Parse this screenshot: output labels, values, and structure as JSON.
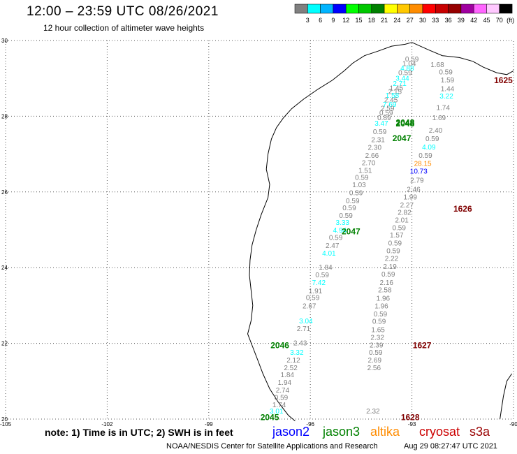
{
  "title": "12:00 – 23:59 UTC 08/26/2021",
  "subtitle": "12 hour collection of altimeter wave heights",
  "color_scale": {
    "unit": "(ft)",
    "ticks": [
      "3",
      "6",
      "9",
      "12",
      "15",
      "18",
      "21",
      "24",
      "27",
      "30",
      "33",
      "36",
      "39",
      "42",
      "45",
      "70"
    ],
    "colors": [
      "#808080",
      "#00ffff",
      "#00b4ff",
      "#0000ff",
      "#00ff00",
      "#00c800",
      "#008000",
      "#ffff00",
      "#ffc800",
      "#ff8c00",
      "#ff0000",
      "#c80000",
      "#960000",
      "#a000a0",
      "#ff64ff",
      "#ffc8ff",
      "#000000"
    ]
  },
  "note": "note: 1) Time is in UTC; 2) SWH is in feet",
  "legend": [
    {
      "name": "jason2",
      "color": "#0000ff"
    },
    {
      "name": "jason3",
      "color": "#008000"
    },
    {
      "name": "altika",
      "color": "#ff8c00"
    },
    {
      "name": "cryosat",
      "color": "#cc0000"
    },
    {
      "name": "s3a",
      "color": "#990000"
    }
  ],
  "credit": "NOAA/NESDIS Center for Satellite Applications and Research",
  "timestamp": "Aug 29 08:27:47 UTC 2021",
  "chart_data": {
    "type": "scatter",
    "xlim": [
      -105,
      -90
    ],
    "ylim": [
      20,
      30
    ],
    "x_ticks": [
      "-105",
      "-102",
      "-99",
      "-96",
      "-93",
      "-90"
    ],
    "y_ticks": [
      "30",
      "28",
      "26",
      "24",
      "22",
      "20"
    ],
    "grid": true,
    "pass_labels": [
      {
        "label": "1625",
        "lon": -90.3,
        "lat": 28.95,
        "color": "#800000"
      },
      {
        "label": "2048",
        "lon": -93.2,
        "lat": 27.8,
        "color": "#008000"
      },
      {
        "label": "2048",
        "lon": -93.2,
        "lat": 27.83,
        "color": "#008000"
      },
      {
        "label": "2047",
        "lon": -93.3,
        "lat": 27.42,
        "color": "#008000"
      },
      {
        "label": "1626",
        "lon": -91.5,
        "lat": 25.55,
        "color": "#800000"
      },
      {
        "label": "2047",
        "lon": -94.8,
        "lat": 24.95,
        "color": "#008000"
      },
      {
        "label": "2046",
        "lon": -96.9,
        "lat": 21.95,
        "color": "#008000"
      },
      {
        "label": "1627",
        "lon": -92.7,
        "lat": 21.95,
        "color": "#800000"
      },
      {
        "label": "2045",
        "lon": -97.2,
        "lat": 20.05,
        "color": "#008000"
      },
      {
        "label": "1628",
        "lon": -93.05,
        "lat": 20.05,
        "color": "#800000"
      }
    ],
    "points": [
      {
        "lon": -93.0,
        "lat": 29.5,
        "v": "0.59",
        "c": "#808080"
      },
      {
        "lon": -93.08,
        "lat": 29.38,
        "v": "1.04",
        "c": "#808080"
      },
      {
        "lon": -93.14,
        "lat": 29.26,
        "v": "4.88",
        "c": "#00ffff"
      },
      {
        "lon": -93.2,
        "lat": 29.14,
        "v": "0.59",
        "c": "#808080"
      },
      {
        "lon": -93.28,
        "lat": 28.99,
        "v": "3.44",
        "c": "#00ffff"
      },
      {
        "lon": -93.36,
        "lat": 28.86,
        "v": "2.71",
        "c": "#00ffff"
      },
      {
        "lon": -93.46,
        "lat": 28.74,
        "v": "1.45",
        "c": "#808080"
      },
      {
        "lon": -93.5,
        "lat": 28.64,
        "v": "2.15",
        "c": "#808080"
      },
      {
        "lon": -93.58,
        "lat": 28.54,
        "v": "1.58",
        "c": "#00ffff"
      },
      {
        "lon": -93.62,
        "lat": 28.42,
        "v": "2.45",
        "c": "#808080"
      },
      {
        "lon": -93.66,
        "lat": 28.3,
        "v": "7.69",
        "c": "#00ffff"
      },
      {
        "lon": -93.72,
        "lat": 28.2,
        "v": "2.59",
        "c": "#808080"
      },
      {
        "lon": -93.76,
        "lat": 28.08,
        "v": "0.59",
        "c": "#808080"
      },
      {
        "lon": -93.82,
        "lat": 27.95,
        "v": "0.89",
        "c": "#808080"
      },
      {
        "lon": -93.9,
        "lat": 27.8,
        "v": "3.47",
        "c": "#00ffff"
      },
      {
        "lon": -93.95,
        "lat": 27.58,
        "v": "0.59",
        "c": "#808080"
      },
      {
        "lon": -94.0,
        "lat": 27.37,
        "v": "2.31",
        "c": "#808080"
      },
      {
        "lon": -94.1,
        "lat": 27.17,
        "v": "2.30",
        "c": "#808080"
      },
      {
        "lon": -94.18,
        "lat": 26.96,
        "v": "2.66",
        "c": "#808080"
      },
      {
        "lon": -94.28,
        "lat": 26.76,
        "v": "2.70",
        "c": "#808080"
      },
      {
        "lon": -94.38,
        "lat": 26.56,
        "v": "1.51",
        "c": "#808080"
      },
      {
        "lon": -94.48,
        "lat": 26.37,
        "v": "0.59",
        "c": "#808080"
      },
      {
        "lon": -94.56,
        "lat": 26.18,
        "v": "1.03",
        "c": "#808080"
      },
      {
        "lon": -94.65,
        "lat": 25.97,
        "v": "0.59",
        "c": "#808080"
      },
      {
        "lon": -94.75,
        "lat": 25.76,
        "v": "0.59",
        "c": "#808080"
      },
      {
        "lon": -94.85,
        "lat": 25.57,
        "v": "0.59",
        "c": "#808080"
      },
      {
        "lon": -94.95,
        "lat": 25.37,
        "v": "0.59",
        "c": "#808080"
      },
      {
        "lon": -95.05,
        "lat": 25.18,
        "v": "3.33",
        "c": "#00ffff"
      },
      {
        "lon": -95.13,
        "lat": 24.98,
        "v": "4.94",
        "c": "#00ffff"
      },
      {
        "lon": -95.25,
        "lat": 24.79,
        "v": "0.59",
        "c": "#808080"
      },
      {
        "lon": -95.35,
        "lat": 24.58,
        "v": "2.47",
        "c": "#808080"
      },
      {
        "lon": -95.45,
        "lat": 24.37,
        "v": "4.01",
        "c": "#00ffff"
      },
      {
        "lon": -95.55,
        "lat": 24.0,
        "v": "1.84",
        "c": "#808080"
      },
      {
        "lon": -95.65,
        "lat": 23.8,
        "v": "0.59",
        "c": "#808080"
      },
      {
        "lon": -95.75,
        "lat": 23.6,
        "v": "7.42",
        "c": "#00ffff"
      },
      {
        "lon": -95.85,
        "lat": 23.38,
        "v": "1.91",
        "c": "#808080"
      },
      {
        "lon": -95.93,
        "lat": 23.2,
        "v": "0.59",
        "c": "#808080"
      },
      {
        "lon": -96.03,
        "lat": 22.98,
        "v": "2.67",
        "c": "#808080"
      },
      {
        "lon": -96.13,
        "lat": 22.58,
        "v": "3.04",
        "c": "#00ffff"
      },
      {
        "lon": -96.2,
        "lat": 22.38,
        "v": "2.71",
        "c": "#808080"
      },
      {
        "lon": -96.3,
        "lat": 22.0,
        "v": "2.43",
        "c": "#808080"
      },
      {
        "lon": -96.4,
        "lat": 21.75,
        "v": "3.32",
        "c": "#00ffff"
      },
      {
        "lon": -96.5,
        "lat": 21.55,
        "v": "2.12",
        "c": "#808080"
      },
      {
        "lon": -96.58,
        "lat": 21.35,
        "v": "2.52",
        "c": "#808080"
      },
      {
        "lon": -96.68,
        "lat": 21.16,
        "v": "1.84",
        "c": "#808080"
      },
      {
        "lon": -96.76,
        "lat": 20.96,
        "v": "1.94",
        "c": "#808080"
      },
      {
        "lon": -96.82,
        "lat": 20.76,
        "v": "2.74",
        "c": "#808080"
      },
      {
        "lon": -96.86,
        "lat": 20.56,
        "v": "0.59",
        "c": "#808080"
      },
      {
        "lon": -96.92,
        "lat": 20.37,
        "v": "1.74",
        "c": "#808080"
      },
      {
        "lon": -97.0,
        "lat": 20.2,
        "v": "3.01",
        "c": "#00ffff"
      },
      {
        "lon": -92.25,
        "lat": 29.35,
        "v": "1.68",
        "c": "#808080"
      },
      {
        "lon": -92.0,
        "lat": 29.16,
        "v": "0.59",
        "c": "#808080"
      },
      {
        "lon": -91.95,
        "lat": 28.95,
        "v": "1.59",
        "c": "#808080"
      },
      {
        "lon": -91.95,
        "lat": 28.72,
        "v": "1.44",
        "c": "#808080"
      },
      {
        "lon": -91.98,
        "lat": 28.52,
        "v": "3.22",
        "c": "#00ffff"
      },
      {
        "lon": -92.08,
        "lat": 28.22,
        "v": "1.74",
        "c": "#808080"
      },
      {
        "lon": -92.2,
        "lat": 27.95,
        "v": "1.69",
        "c": "#808080"
      },
      {
        "lon": -92.3,
        "lat": 27.62,
        "v": "2.40",
        "c": "#808080"
      },
      {
        "lon": -92.4,
        "lat": 27.4,
        "v": "0.59",
        "c": "#808080"
      },
      {
        "lon": -92.5,
        "lat": 27.18,
        "v": "4.09",
        "c": "#00ffff"
      },
      {
        "lon": -92.6,
        "lat": 26.96,
        "v": "0.59",
        "c": "#808080"
      },
      {
        "lon": -92.68,
        "lat": 26.74,
        "v": "28.15",
        "c": "#ff8c00"
      },
      {
        "lon": -92.8,
        "lat": 26.54,
        "v": "10.73",
        "c": "#0000ff"
      },
      {
        "lon": -92.85,
        "lat": 26.3,
        "v": "2.79",
        "c": "#808080"
      },
      {
        "lon": -92.95,
        "lat": 26.06,
        "v": "2.46",
        "c": "#808080"
      },
      {
        "lon": -93.05,
        "lat": 25.86,
        "v": "1.99",
        "c": "#808080"
      },
      {
        "lon": -93.15,
        "lat": 25.65,
        "v": "2.27",
        "c": "#808080"
      },
      {
        "lon": -93.22,
        "lat": 25.45,
        "v": "2.82",
        "c": "#808080"
      },
      {
        "lon": -93.3,
        "lat": 25.25,
        "v": "2.01",
        "c": "#808080"
      },
      {
        "lon": -93.38,
        "lat": 25.05,
        "v": "0.59",
        "c": "#808080"
      },
      {
        "lon": -93.45,
        "lat": 24.85,
        "v": "1.57",
        "c": "#808080"
      },
      {
        "lon": -93.5,
        "lat": 24.64,
        "v": "0.59",
        "c": "#808080"
      },
      {
        "lon": -93.55,
        "lat": 24.44,
        "v": "0.59",
        "c": "#808080"
      },
      {
        "lon": -93.6,
        "lat": 24.23,
        "v": "2.22",
        "c": "#808080"
      },
      {
        "lon": -93.65,
        "lat": 24.02,
        "v": "2.19",
        "c": "#808080"
      },
      {
        "lon": -93.7,
        "lat": 23.82,
        "v": "0.59",
        "c": "#808080"
      },
      {
        "lon": -93.75,
        "lat": 23.6,
        "v": "2.16",
        "c": "#808080"
      },
      {
        "lon": -93.8,
        "lat": 23.4,
        "v": "2.58",
        "c": "#808080"
      },
      {
        "lon": -93.85,
        "lat": 23.18,
        "v": "1.96",
        "c": "#808080"
      },
      {
        "lon": -93.9,
        "lat": 22.98,
        "v": "1.96",
        "c": "#808080"
      },
      {
        "lon": -93.93,
        "lat": 22.77,
        "v": "0.59",
        "c": "#808080"
      },
      {
        "lon": -93.97,
        "lat": 22.57,
        "v": "0.59",
        "c": "#808080"
      },
      {
        "lon": -94.0,
        "lat": 22.35,
        "v": "1.65",
        "c": "#808080"
      },
      {
        "lon": -94.02,
        "lat": 22.15,
        "v": "2.32",
        "c": "#808080"
      },
      {
        "lon": -94.05,
        "lat": 21.95,
        "v": "2.39",
        "c": "#808080"
      },
      {
        "lon": -94.07,
        "lat": 21.75,
        "v": "0.59",
        "c": "#808080"
      },
      {
        "lon": -94.1,
        "lat": 21.55,
        "v": "2.69",
        "c": "#808080"
      },
      {
        "lon": -94.12,
        "lat": 21.35,
        "v": "2.56",
        "c": "#808080"
      },
      {
        "lon": -94.15,
        "lat": 20.2,
        "v": "2.32",
        "c": "#808080"
      }
    ]
  }
}
